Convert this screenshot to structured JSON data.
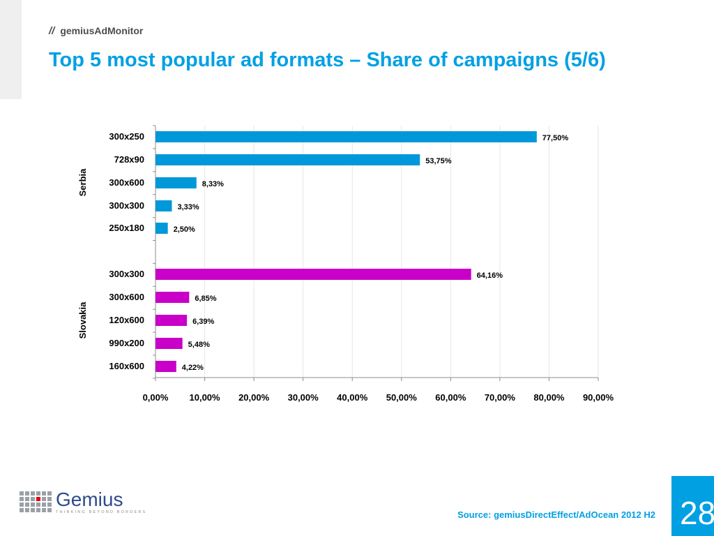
{
  "header": {
    "brand_slashes": "//",
    "brand": "gemiusAdMonitor",
    "title": "Top 5 most popular ad formats – Share of campaigns (5/6)"
  },
  "footer": {
    "logo_text": "Gemius",
    "logo_tagline": "THINKING BEYOND BORDERS",
    "source": "Source: gemiusDirectEffect/AdOcean 2012 H2",
    "page_number": "28"
  },
  "colors": {
    "accent": "#00a0e3",
    "serbia_bar": "#0098d8",
    "slovakia_bar": "#c800c8"
  },
  "icons": {
    "logo": "gemius-logo-icon"
  },
  "chart_data": {
    "type": "bar",
    "orientation": "horizontal",
    "groups": [
      {
        "name": "Serbia",
        "color": "#0098d8",
        "categories": [
          "300x250",
          "728x90",
          "300x600",
          "300x300",
          "250x180"
        ],
        "values": [
          77.5,
          53.75,
          8.33,
          3.33,
          2.5
        ],
        "labels": [
          "77,50%",
          "53,75%",
          "8,33%",
          "3,33%",
          "2,50%"
        ]
      },
      {
        "name": "Slovakia",
        "color": "#c800c8",
        "categories": [
          "300x300",
          "300x600",
          "120x600",
          "990x200",
          "160x600"
        ],
        "values": [
          64.16,
          6.85,
          6.39,
          5.48,
          4.22
        ],
        "labels": [
          "64,16%",
          "6,85%",
          "6,39%",
          "5,48%",
          "4,22%"
        ]
      }
    ],
    "xlim": [
      0,
      90
    ],
    "xticks": [
      0,
      10,
      20,
      30,
      40,
      50,
      60,
      70,
      80,
      90
    ],
    "xtick_labels": [
      "0,00%",
      "10,00%",
      "20,00%",
      "30,00%",
      "40,00%",
      "50,00%",
      "60,00%",
      "70,00%",
      "80,00%",
      "90,00%"
    ],
    "grid": true
  }
}
